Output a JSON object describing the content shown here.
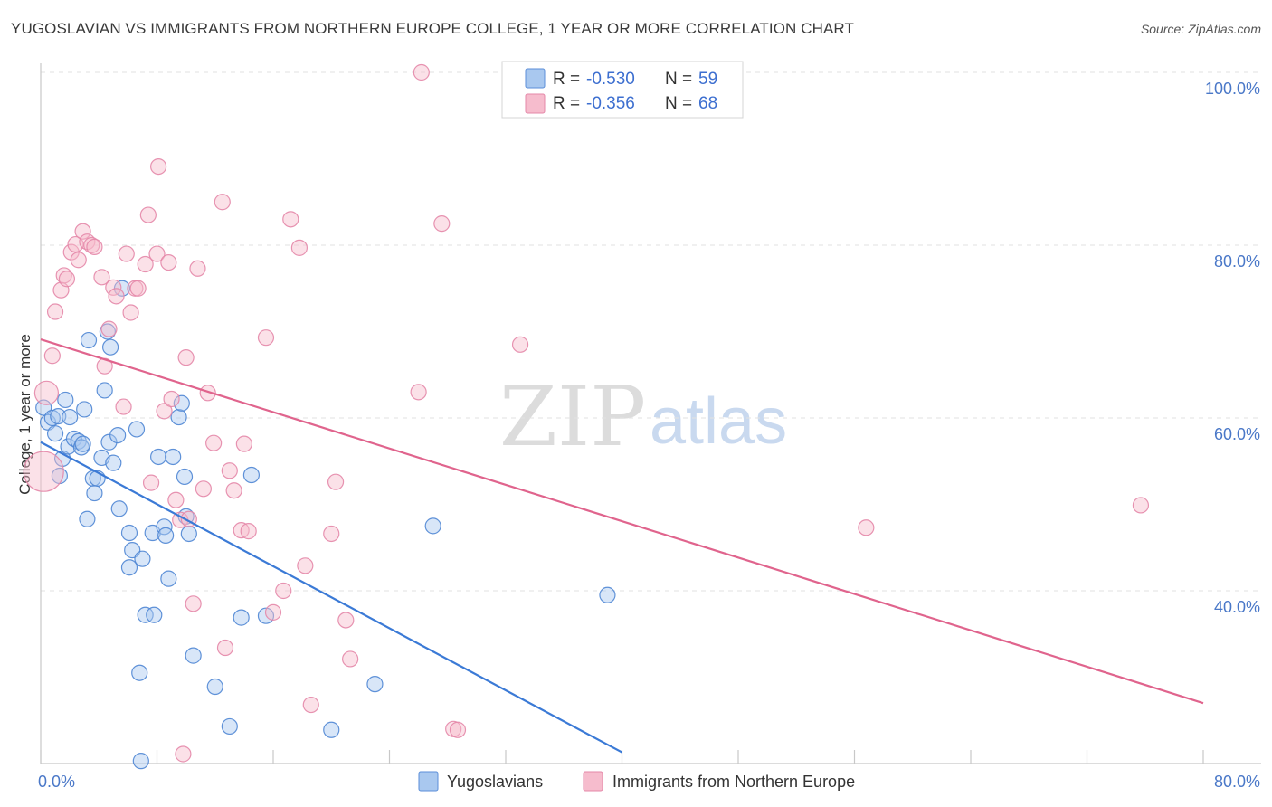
{
  "title": "YUGOSLAVIAN VS IMMIGRANTS FROM NORTHERN EUROPE COLLEGE, 1 YEAR OR MORE CORRELATION CHART",
  "source": "Source: ZipAtlas.com",
  "watermark": {
    "zip": "ZIP",
    "atlas": "atlas"
  },
  "chart_data": {
    "type": "scatter",
    "xlabel": "",
    "ylabel": "College, 1 year or more",
    "xlim": [
      0,
      80
    ],
    "ylim": [
      20,
      100
    ],
    "x_tick_labels": [
      "0.0%",
      "80.0%"
    ],
    "y_ticks": [
      40,
      60,
      80,
      100
    ],
    "y_tick_labels": [
      "40.0%",
      "60.0%",
      "80.0%",
      "100.0%"
    ],
    "legend": [
      {
        "r_label": "R =",
        "r": "-0.530",
        "n_label": "N =",
        "n": "59",
        "color": "#a9c8ef",
        "stroke": "#5b8ed8"
      },
      {
        "r_label": "R =",
        "r": "-0.356",
        "n_label": "N =",
        "n": "68",
        "color": "#f6bccd",
        "stroke": "#e487a8"
      }
    ],
    "series": [
      {
        "name": "Yugoslavians",
        "color": "#a9c8ef",
        "stroke": "#4f86d4",
        "line_color": "#3b7ad6",
        "trend": [
          [
            0,
            57.2
          ],
          [
            40,
            21.3
          ]
        ],
        "points": [
          [
            0.2,
            61.2
          ],
          [
            0.5,
            59.5
          ],
          [
            0.8,
            60.0
          ],
          [
            1.0,
            58.2
          ],
          [
            1.2,
            60.2
          ],
          [
            1.3,
            53.3
          ],
          [
            1.5,
            55.3
          ],
          [
            1.7,
            62.1
          ],
          [
            1.9,
            56.7
          ],
          [
            2.0,
            60.1
          ],
          [
            2.3,
            57.6
          ],
          [
            2.6,
            57.3
          ],
          [
            2.8,
            56.6
          ],
          [
            2.9,
            57.0
          ],
          [
            3.0,
            61.0
          ],
          [
            3.2,
            48.3
          ],
          [
            3.3,
            69.0
          ],
          [
            3.6,
            53.0
          ],
          [
            3.7,
            51.3
          ],
          [
            3.9,
            53.0
          ],
          [
            4.2,
            55.4
          ],
          [
            4.4,
            63.2
          ],
          [
            4.6,
            70.0
          ],
          [
            4.7,
            57.2
          ],
          [
            4.8,
            68.2
          ],
          [
            5.0,
            54.8
          ],
          [
            5.3,
            58.0
          ],
          [
            5.4,
            49.5
          ],
          [
            5.6,
            75.0
          ],
          [
            6.1,
            46.7
          ],
          [
            6.1,
            42.7
          ],
          [
            6.3,
            44.7
          ],
          [
            6.6,
            58.7
          ],
          [
            6.8,
            30.5
          ],
          [
            6.9,
            20.3
          ],
          [
            7.0,
            43.7
          ],
          [
            7.2,
            37.2
          ],
          [
            7.7,
            46.7
          ],
          [
            7.8,
            37.2
          ],
          [
            8.1,
            55.5
          ],
          [
            8.5,
            47.4
          ],
          [
            8.6,
            46.4
          ],
          [
            8.8,
            41.4
          ],
          [
            9.1,
            55.5
          ],
          [
            9.5,
            60.1
          ],
          [
            9.7,
            61.7
          ],
          [
            9.9,
            53.2
          ],
          [
            10.0,
            48.6
          ],
          [
            10.2,
            46.6
          ],
          [
            10.5,
            32.5
          ],
          [
            12.0,
            28.9
          ],
          [
            13.0,
            24.3
          ],
          [
            13.8,
            36.9
          ],
          [
            14.5,
            53.4
          ],
          [
            15.5,
            37.1
          ],
          [
            20.0,
            23.9
          ],
          [
            23.0,
            29.2
          ],
          [
            27.0,
            47.5
          ],
          [
            39.0,
            39.5
          ]
        ]
      },
      {
        "name": "Immigrants from Northern Europe",
        "color": "#f6bccd",
        "stroke": "#e487a8",
        "line_color": "#e0648d",
        "trend": [
          [
            0,
            69.1
          ],
          [
            80,
            27.0
          ]
        ],
        "points": [
          [
            0.2,
            53.8
          ],
          [
            0.4,
            62.9
          ],
          [
            0.8,
            67.2
          ],
          [
            1.0,
            72.3
          ],
          [
            1.4,
            74.8
          ],
          [
            1.6,
            76.5
          ],
          [
            1.8,
            76.1
          ],
          [
            2.1,
            79.2
          ],
          [
            2.4,
            80.1
          ],
          [
            2.6,
            78.3
          ],
          [
            2.9,
            81.6
          ],
          [
            3.2,
            80.4
          ],
          [
            3.5,
            80.0
          ],
          [
            3.7,
            79.8
          ],
          [
            4.2,
            76.3
          ],
          [
            4.4,
            66.0
          ],
          [
            4.7,
            70.3
          ],
          [
            5.0,
            75.1
          ],
          [
            5.2,
            74.1
          ],
          [
            5.7,
            61.3
          ],
          [
            5.9,
            79.0
          ],
          [
            6.2,
            72.2
          ],
          [
            6.5,
            75.0
          ],
          [
            6.7,
            75.0
          ],
          [
            7.2,
            77.8
          ],
          [
            7.4,
            83.5
          ],
          [
            7.6,
            52.5
          ],
          [
            8.0,
            79.0
          ],
          [
            8.1,
            89.1
          ],
          [
            8.5,
            60.8
          ],
          [
            8.8,
            78.0
          ],
          [
            9.0,
            62.2
          ],
          [
            9.3,
            50.5
          ],
          [
            9.6,
            48.2
          ],
          [
            9.8,
            21.1
          ],
          [
            10.0,
            67.0
          ],
          [
            10.2,
            48.3
          ],
          [
            10.5,
            38.5
          ],
          [
            10.8,
            77.3
          ],
          [
            11.2,
            51.8
          ],
          [
            11.5,
            62.9
          ],
          [
            11.9,
            57.1
          ],
          [
            12.5,
            85.0
          ],
          [
            12.7,
            33.4
          ],
          [
            13.0,
            53.9
          ],
          [
            13.3,
            51.6
          ],
          [
            13.8,
            47.0
          ],
          [
            14.0,
            57.0
          ],
          [
            14.3,
            46.9
          ],
          [
            15.5,
            69.3
          ],
          [
            16.0,
            37.5
          ],
          [
            16.7,
            40.0
          ],
          [
            17.2,
            83.0
          ],
          [
            17.8,
            79.7
          ],
          [
            18.2,
            42.9
          ],
          [
            18.6,
            26.8
          ],
          [
            20.0,
            46.6
          ],
          [
            20.3,
            52.6
          ],
          [
            21.0,
            36.6
          ],
          [
            21.3,
            32.1
          ],
          [
            26.0,
            63.0
          ],
          [
            26.2,
            100.0
          ],
          [
            27.6,
            82.5
          ],
          [
            28.4,
            24.0
          ],
          [
            28.7,
            23.9
          ],
          [
            33.0,
            68.5
          ],
          [
            56.8,
            47.3
          ],
          [
            75.7,
            49.9
          ]
        ]
      }
    ]
  }
}
